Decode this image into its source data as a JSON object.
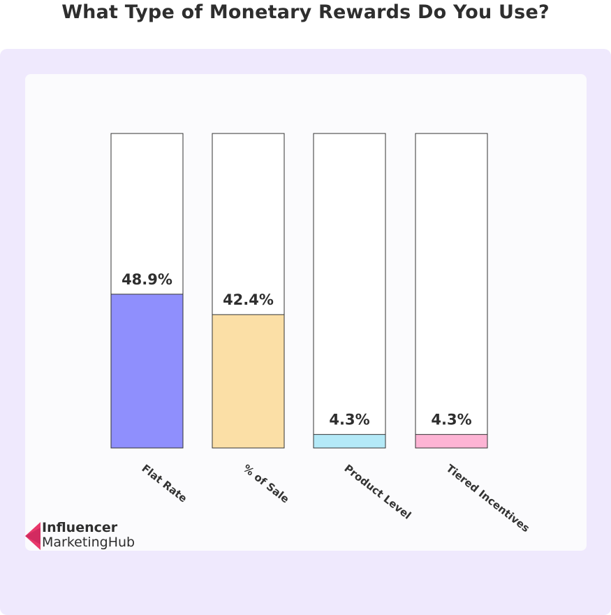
{
  "title": "What Type of Monetary Rewards Do You Use?",
  "colors": {
    "background": "#ffffff",
    "outer_panel": "#efe9fd",
    "inner_panel": "#fbfbfd",
    "bar_track": "#ffffff",
    "bar_outline": "#333333",
    "logo_mark": "#e8386b"
  },
  "chart_data": {
    "type": "bar",
    "title": "What Type of Monetary Rewards Do You Use?",
    "categories": [
      "Flat Rate",
      "% of Sale",
      "Product Level",
      "Tiered Incentives"
    ],
    "values": [
      48.9,
      42.4,
      4.3,
      4.3
    ],
    "value_labels": [
      "48.9%",
      "42.4%",
      "4.3%",
      "4.3%"
    ],
    "bar_colors": [
      "#8f8ffd",
      "#fbdfa6",
      "#b4e9f7",
      "#fdb4d4"
    ],
    "ylim": [
      0,
      100
    ],
    "unit": "%",
    "grid": false,
    "legend": "none",
    "xlabel": "",
    "ylabel": ""
  },
  "logo": {
    "line1": "Influencer",
    "line2": "MarketingHub",
    "icon": "influencer-marketing-hub-logo-icon"
  }
}
